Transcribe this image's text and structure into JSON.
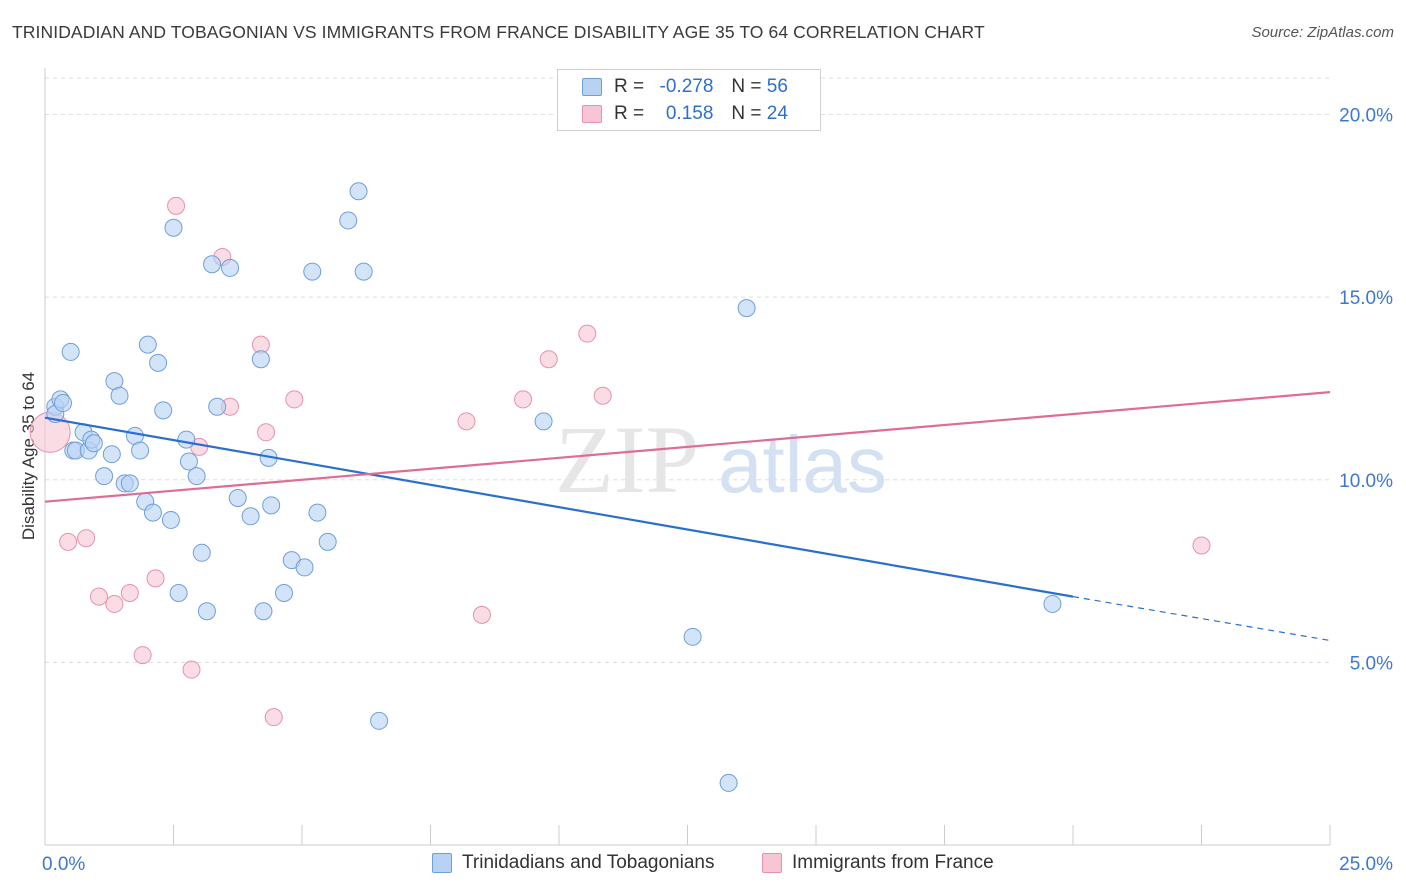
{
  "title": "TRINIDADIAN AND TOBAGONIAN VS IMMIGRANTS FROM FRANCE DISABILITY AGE 35 TO 64 CORRELATION CHART",
  "source": "Source: ZipAtlas.com",
  "watermark": {
    "zip": "ZIP",
    "atlas": "atlas"
  },
  "colors": {
    "blue_fill": "#b8d2f3",
    "blue_stroke": "#6f9fd8",
    "blue_line": "#2a6fd0",
    "pink_fill": "#f7c5d4",
    "pink_stroke": "#e891ad",
    "pink_line": "#e06c96",
    "tick_label": "#3d78d0",
    "grid": "#dddddd"
  },
  "legend": {
    "rows": [
      {
        "r_label": "R =",
        "r_value": "-0.278",
        "n_label": "N =",
        "n_value": "56"
      },
      {
        "r_label": "R =",
        "r_value": "0.158",
        "n_label": "N =",
        "n_value": "24"
      }
    ]
  },
  "chart_data": {
    "type": "scatter",
    "title": "TRINIDADIAN AND TOBAGONIAN VS IMMIGRANTS FROM FRANCE DISABILITY AGE 35 TO 64 CORRELATION CHART",
    "xlabel": "",
    "ylabel": "Disability Age 35 to 64",
    "xlim": [
      0,
      25
    ],
    "ylim": [
      0,
      21
    ],
    "x_tick_labels": [
      "0.0%",
      "25.0%"
    ],
    "y_ticks": [
      5,
      10,
      15,
      20
    ],
    "y_tick_labels": [
      "5.0%",
      "10.0%",
      "15.0%",
      "20.0%"
    ],
    "grid": "horizontal dashed",
    "legend_placement": "top-center and bottom",
    "series": [
      {
        "name": "Trinidadians and Tobagonians",
        "color": "#b8d2f3",
        "points": [
          [
            0.2,
            12.0
          ],
          [
            0.2,
            11.8
          ],
          [
            0.3,
            12.2
          ],
          [
            0.35,
            12.1
          ],
          [
            0.5,
            13.5
          ],
          [
            0.55,
            10.8
          ],
          [
            0.6,
            10.8
          ],
          [
            0.75,
            11.3
          ],
          [
            0.85,
            10.8
          ],
          [
            0.9,
            11.1
          ],
          [
            0.95,
            11.0
          ],
          [
            1.15,
            10.1
          ],
          [
            1.3,
            10.7
          ],
          [
            1.35,
            12.7
          ],
          [
            1.45,
            12.3
          ],
          [
            1.55,
            9.9
          ],
          [
            1.65,
            9.9
          ],
          [
            1.75,
            11.2
          ],
          [
            1.85,
            10.8
          ],
          [
            1.95,
            9.4
          ],
          [
            2.0,
            13.7
          ],
          [
            2.1,
            9.1
          ],
          [
            2.2,
            13.2
          ],
          [
            2.3,
            11.9
          ],
          [
            2.45,
            8.9
          ],
          [
            2.5,
            16.9
          ],
          [
            2.6,
            6.9
          ],
          [
            2.75,
            11.1
          ],
          [
            2.8,
            10.5
          ],
          [
            2.95,
            10.1
          ],
          [
            3.05,
            8.0
          ],
          [
            3.15,
            6.4
          ],
          [
            3.25,
            15.9
          ],
          [
            3.35,
            12.0
          ],
          [
            3.6,
            15.8
          ],
          [
            3.75,
            9.5
          ],
          [
            4.0,
            9.0
          ],
          [
            4.2,
            13.3
          ],
          [
            4.25,
            6.4
          ],
          [
            4.35,
            10.6
          ],
          [
            4.4,
            9.3
          ],
          [
            4.65,
            6.9
          ],
          [
            4.8,
            7.8
          ],
          [
            5.05,
            7.6
          ],
          [
            5.2,
            15.7
          ],
          [
            5.3,
            9.1
          ],
          [
            5.5,
            8.3
          ],
          [
            5.9,
            17.1
          ],
          [
            6.1,
            17.9
          ],
          [
            6.2,
            15.7
          ],
          [
            6.5,
            3.4
          ],
          [
            9.7,
            11.6
          ],
          [
            12.6,
            5.7
          ],
          [
            13.3,
            1.7
          ],
          [
            13.65,
            14.7
          ],
          [
            19.6,
            6.6
          ]
        ],
        "trend_line": {
          "x0": 0,
          "y0": 11.7,
          "x1": 20.0,
          "y1": 6.8,
          "dashed_extension": {
            "x1": 25.0,
            "y1": 5.6
          }
        }
      },
      {
        "name": "Immigrants from France",
        "color": "#f7c5d4",
        "points": [
          [
            0.1,
            11.3
          ],
          [
            0.45,
            8.3
          ],
          [
            0.8,
            8.4
          ],
          [
            1.05,
            6.8
          ],
          [
            1.35,
            6.6
          ],
          [
            1.65,
            6.9
          ],
          [
            1.9,
            5.2
          ],
          [
            2.15,
            7.3
          ],
          [
            2.55,
            17.5
          ],
          [
            2.85,
            4.8
          ],
          [
            3.0,
            10.9
          ],
          [
            3.45,
            16.1
          ],
          [
            3.6,
            12.0
          ],
          [
            4.2,
            13.7
          ],
          [
            4.3,
            11.3
          ],
          [
            4.45,
            3.5
          ],
          [
            4.85,
            12.2
          ],
          [
            8.2,
            11.6
          ],
          [
            8.5,
            6.3
          ],
          [
            9.3,
            12.2
          ],
          [
            9.8,
            13.3
          ],
          [
            10.55,
            14.0
          ],
          [
            10.85,
            12.3
          ],
          [
            22.5,
            8.2
          ]
        ],
        "trend_line": {
          "x0": 0,
          "y0": 9.4,
          "x1": 25.0,
          "y1": 12.4
        }
      }
    ]
  },
  "bottom_legend": [
    "Trinidadians and Tobagonians",
    "Immigrants from France"
  ]
}
